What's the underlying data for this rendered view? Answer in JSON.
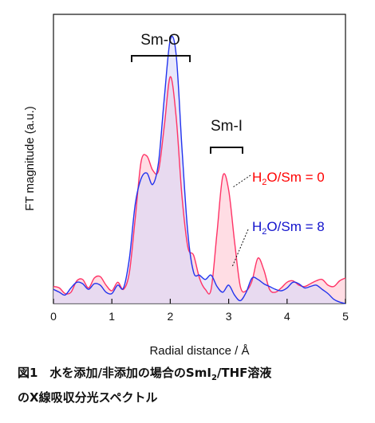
{
  "chart_data": {
    "type": "area",
    "xlabel": "Radial distance / Å",
    "ylabel": "FT magnitude (a.u.)",
    "xlim": [
      0,
      5
    ],
    "ylim": [
      0,
      1.02
    ],
    "x_ticks": [
      "0",
      "1",
      "2",
      "3",
      "4",
      "5"
    ],
    "y_ticks": [],
    "grid": false,
    "annotations": [
      {
        "text": "Sm-O",
        "range": [
          1.3,
          2.35
        ]
      },
      {
        "text": "Sm-I",
        "range": [
          2.68,
          3.25
        ]
      }
    ],
    "series": [
      {
        "name": "H2O/Sm = 0",
        "color": "#ff3366",
        "label_color": "#ff0000",
        "fill": "#ffc6d2",
        "x": [
          0,
          0.1,
          0.2,
          0.3,
          0.4,
          0.5,
          0.6,
          0.7,
          0.8,
          0.9,
          1.0,
          1.1,
          1.2,
          1.3,
          1.4,
          1.5,
          1.6,
          1.7,
          1.8,
          1.9,
          2.0,
          2.1,
          2.2,
          2.3,
          2.4,
          2.5,
          2.6,
          2.7,
          2.8,
          2.9,
          3.0,
          3.1,
          3.2,
          3.3,
          3.4,
          3.5,
          3.6,
          3.7,
          3.8,
          3.9,
          4.0,
          4.1,
          4.2,
          4.3,
          4.4,
          4.5,
          4.6,
          4.7,
          4.8,
          4.9,
          5.0
        ],
        "values": [
          0.06,
          0.055,
          0.035,
          0.04,
          0.08,
          0.085,
          0.055,
          0.09,
          0.095,
          0.065,
          0.045,
          0.075,
          0.05,
          0.11,
          0.3,
          0.5,
          0.52,
          0.47,
          0.47,
          0.63,
          0.8,
          0.66,
          0.38,
          0.2,
          0.17,
          0.09,
          0.05,
          0.05,
          0.25,
          0.45,
          0.4,
          0.22,
          0.06,
          0.045,
          0.08,
          0.16,
          0.12,
          0.05,
          0.04,
          0.055,
          0.075,
          0.08,
          0.065,
          0.06,
          0.07,
          0.08,
          0.085,
          0.065,
          0.06,
          0.08,
          0.09
        ]
      },
      {
        "name": "H2O/Sm = 8",
        "color": "#2233ee",
        "label_color": "#1111cc",
        "fill": "#d8d8f8",
        "x": [
          0,
          0.1,
          0.2,
          0.3,
          0.4,
          0.5,
          0.6,
          0.7,
          0.8,
          0.9,
          1.0,
          1.1,
          1.2,
          1.3,
          1.4,
          1.5,
          1.6,
          1.7,
          1.8,
          1.9,
          2.0,
          2.1,
          2.2,
          2.3,
          2.4,
          2.5,
          2.6,
          2.7,
          2.8,
          2.9,
          3.0,
          3.1,
          3.2,
          3.3,
          3.4,
          3.5,
          3.6,
          3.7,
          3.8,
          3.9,
          4.0,
          4.1,
          4.2,
          4.3,
          4.4,
          4.5,
          4.6,
          4.7,
          4.8,
          4.9,
          5.0
        ],
        "values": [
          0.05,
          0.04,
          0.03,
          0.055,
          0.075,
          0.07,
          0.05,
          0.07,
          0.065,
          0.04,
          0.035,
          0.065,
          0.055,
          0.16,
          0.35,
          0.44,
          0.46,
          0.42,
          0.5,
          0.73,
          0.93,
          0.88,
          0.55,
          0.25,
          0.11,
          0.1,
          0.085,
          0.1,
          0.06,
          0.04,
          0.065,
          0.03,
          0.01,
          0.04,
          0.09,
          0.085,
          0.07,
          0.06,
          0.05,
          0.045,
          0.055,
          0.075,
          0.07,
          0.055,
          0.06,
          0.065,
          0.05,
          0.035,
          0.015,
          0.005,
          0.0
        ]
      }
    ]
  },
  "legend": {
    "series0": {
      "pre": "H",
      "sub": "2",
      "post": "O/Sm = 0"
    },
    "series1": {
      "pre": "H",
      "sub": "2",
      "post": "O/Sm = 8"
    }
  },
  "caption": {
    "line1_a": "図1　水を添加/非添加の場合のSmI",
    "line1_sub": "2",
    "line1_b": "/THF溶液",
    "line2": "のX線吸収分光スペクトル"
  }
}
